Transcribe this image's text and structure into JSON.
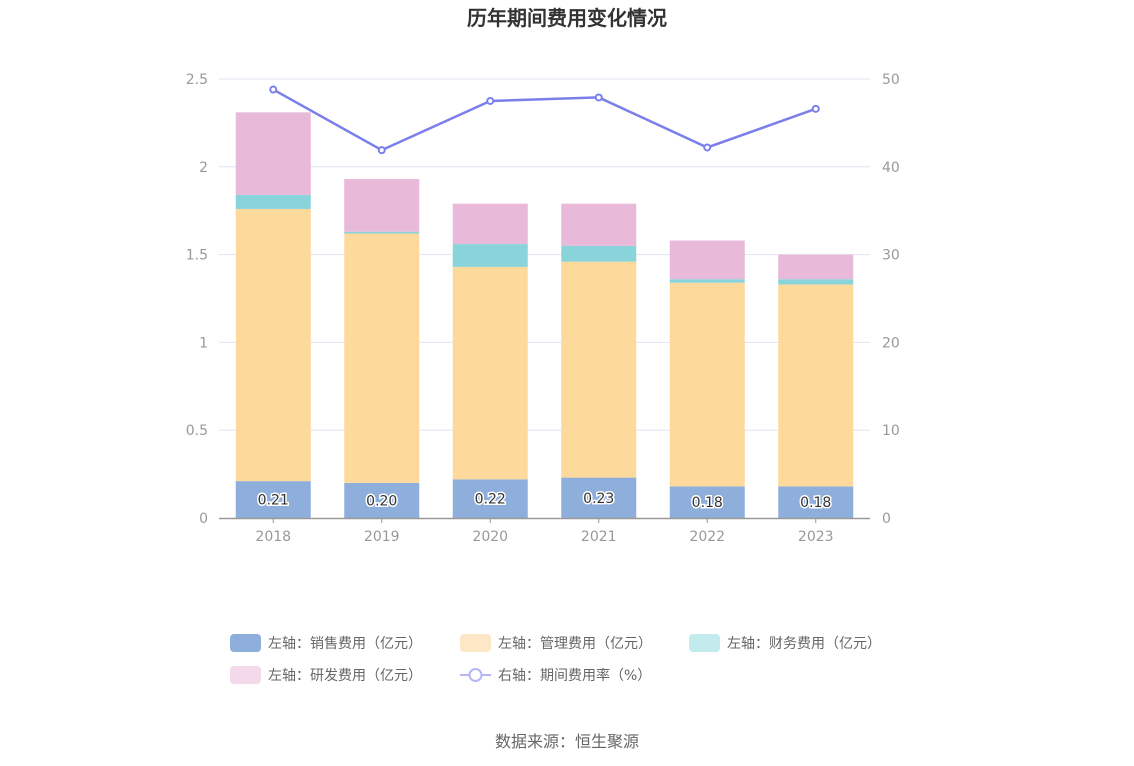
{
  "chart_data": {
    "type": "bar",
    "title": "历年期间费用变化情况",
    "categories": [
      "2018",
      "2019",
      "2020",
      "2021",
      "2022",
      "2023"
    ],
    "stacked": true,
    "series": [
      {
        "name": "左轴：销售费用（亿元）",
        "axis": "left",
        "color": "#8eaedb",
        "values": [
          0.21,
          0.2,
          0.22,
          0.23,
          0.18,
          0.18
        ],
        "labels": [
          "0.21",
          "0.20",
          "0.22",
          "0.23",
          "0.18",
          "0.18"
        ]
      },
      {
        "name": "左轴：管理费用（亿元）",
        "axis": "left",
        "color": "#fdd99c",
        "values": [
          1.55,
          1.42,
          1.21,
          1.23,
          1.16,
          1.15
        ]
      },
      {
        "name": "左轴：财务费用（亿元）",
        "axis": "left",
        "color": "#89d3da",
        "values": [
          0.08,
          0.01,
          0.13,
          0.09,
          0.02,
          0.03
        ]
      },
      {
        "name": "左轴：研发费用（亿元）",
        "axis": "left",
        "color": "#e8b9d9",
        "values": [
          0.47,
          0.3,
          0.23,
          0.24,
          0.22,
          0.14
        ]
      },
      {
        "name": "右轴：期间费用率（%）",
        "axis": "right",
        "type": "line",
        "color": "#7b7fec",
        "values": [
          48.8,
          41.9,
          47.5,
          47.9,
          42.2,
          46.6
        ]
      }
    ],
    "y_left": {
      "min": 0,
      "max": 2.5,
      "ticks": [
        "0",
        "0.5",
        "1",
        "1.5",
        "2",
        "2.5"
      ]
    },
    "y_right": {
      "min": 0,
      "max": 50,
      "ticks": [
        "0",
        "10",
        "20",
        "30",
        "40",
        "50"
      ]
    },
    "legend_position": "bottom",
    "grid": true
  },
  "legend_items": [
    {
      "label": "左轴：销售费用（亿元）",
      "color": "#8eaedb",
      "kind": "rect"
    },
    {
      "label": "左轴：管理费用（亿元）",
      "color": "#fde8c6",
      "kind": "rect"
    },
    {
      "label": "左轴：财务费用（亿元）",
      "color": "#c3ebee",
      "kind": "rect"
    },
    {
      "label": "左轴：研发费用（亿元）",
      "color": "#f3d9ea",
      "kind": "rect"
    },
    {
      "label": "右轴：期间费用率（%）",
      "color": "#b5b7f5",
      "kind": "line"
    }
  ],
  "source": "数据来源：恒生聚源"
}
